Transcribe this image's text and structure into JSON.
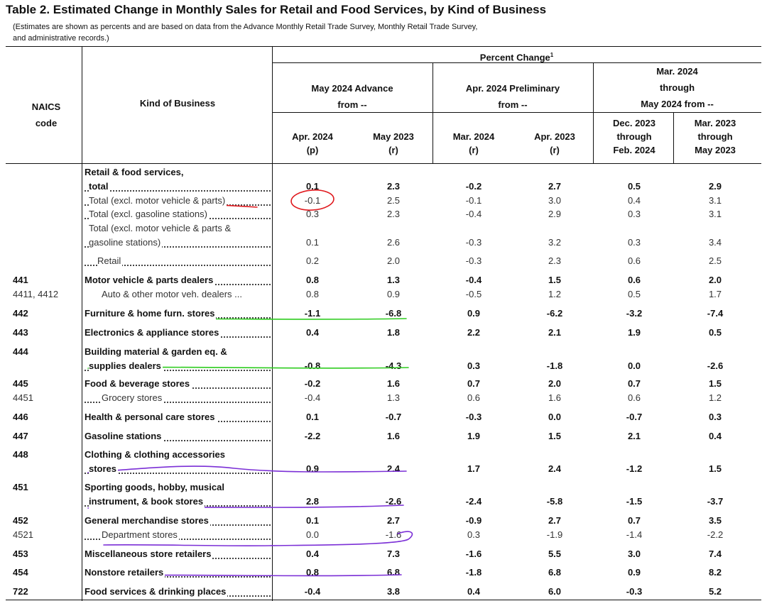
{
  "title": "Table 2.  Estimated Change in Monthly Sales for Retail and Food Services, by Kind of Business",
  "subtitle": [
    "(Estimates are shown as percents and are based on data from the Advance Monthly Retail Trade Survey,  Monthly Retail Trade Survey,",
    "and administrative records.)"
  ],
  "header": {
    "naics": [
      "NAICS",
      "code"
    ],
    "kind": "Kind of Business",
    "percent_change": "Percent Change",
    "footnote": "1",
    "groups": [
      {
        "lines": [
          "May 2024 Advance",
          "from --"
        ]
      },
      {
        "lines": [
          "Apr. 2024 Preliminary",
          "from --"
        ]
      },
      {
        "lines": [
          "Mar. 2024",
          "through",
          "May 2024 from --"
        ]
      }
    ],
    "cols": [
      {
        "lines": [
          "Apr. 2024",
          "(p)"
        ]
      },
      {
        "lines": [
          "May 2023",
          "(r)"
        ]
      },
      {
        "lines": [
          "Mar. 2024",
          "(r)"
        ]
      },
      {
        "lines": [
          "Apr. 2023",
          "(r)"
        ]
      },
      {
        "lines": [
          "Dec. 2023",
          "through",
          "Feb. 2024"
        ]
      },
      {
        "lines": [
          "Mar. 2023",
          "through",
          "May 2023"
        ]
      }
    ]
  },
  "rows": [
    {
      "code": "",
      "bold": true,
      "indent": 0,
      "label_lines": [
        "Retail & food services,",
        "total"
      ],
      "values": [
        "0.1",
        "2.3",
        "-0.2",
        "2.7",
        "0.5",
        "2.9"
      ]
    },
    {
      "code": "",
      "bold": false,
      "indent": 1,
      "label_lines": [
        "Total (excl. motor vehicle & parts)"
      ],
      "values": [
        "-0.1",
        "2.5",
        "-0.1",
        "3.0",
        "0.4",
        "3.1"
      ]
    },
    {
      "code": "",
      "bold": false,
      "indent": 1,
      "label_lines": [
        "Total (excl. gasoline stations)"
      ],
      "values": [
        "0.3",
        "2.3",
        "-0.4",
        "2.9",
        "0.3",
        "3.1"
      ]
    },
    {
      "code": "",
      "bold": false,
      "indent": 1,
      "label_lines": [
        "Total (excl. motor vehicle & parts &",
        "gasoline stations)"
      ],
      "values": [
        "0.1",
        "2.6",
        "-0.3",
        "3.2",
        "0.3",
        "3.4"
      ]
    },
    {
      "code": "",
      "bold": false,
      "indent": 2,
      "label_lines": [
        "Retail"
      ],
      "values": [
        "0.2",
        "2.0",
        "-0.3",
        "2.3",
        "0.6",
        "2.5"
      ]
    },
    {
      "code": "441",
      "bold": true,
      "indent": 0,
      "label_lines": [
        "Motor vehicle & parts dealers"
      ],
      "values": [
        "0.8",
        "1.3",
        "-0.4",
        "1.5",
        "0.6",
        "2.0"
      ]
    },
    {
      "code": "4411, 4412",
      "bold": false,
      "indent": 3,
      "label_lines": [
        "Auto & other motor veh. dealers ..."
      ],
      "values": [
        "0.8",
        "0.9",
        "-0.5",
        "1.2",
        "0.5",
        "1.7"
      ]
    },
    {
      "code": "442",
      "bold": true,
      "indent": 0,
      "label_lines": [
        "Furniture & home furn. stores"
      ],
      "values": [
        "-1.1",
        "-6.8",
        "0.9",
        "-6.2",
        "-3.2",
        "-7.4"
      ]
    },
    {
      "code": "443",
      "bold": true,
      "indent": 0,
      "label_lines": [
        "Electronics & appliance stores"
      ],
      "values": [
        "0.4",
        "1.8",
        "2.2",
        "2.1",
        "1.9",
        "0.5"
      ]
    },
    {
      "code": "444",
      "bold": true,
      "indent": 0,
      "label_lines": [
        "Building material & garden eq. &",
        "supplies dealers"
      ],
      "values": [
        "-0.8",
        "-4.3",
        "0.3",
        "-1.8",
        "0.0",
        "-2.6"
      ]
    },
    {
      "code": "445",
      "bold": true,
      "indent": 0,
      "label_lines": [
        "Food & beverage stores"
      ],
      "values": [
        "-0.2",
        "1.6",
        "0.7",
        "2.0",
        "0.7",
        "1.5"
      ]
    },
    {
      "code": "4451",
      "bold": false,
      "indent": 3,
      "label_lines": [
        "Grocery stores"
      ],
      "values": [
        "-0.4",
        "1.3",
        "0.6",
        "1.6",
        "0.6",
        "1.2"
      ]
    },
    {
      "code": "446",
      "bold": true,
      "indent": 0,
      "label_lines": [
        "Health & personal care stores"
      ],
      "values": [
        "0.1",
        "-0.7",
        "-0.3",
        "0.0",
        "-0.7",
        "0.3"
      ]
    },
    {
      "code": "447",
      "bold": true,
      "indent": 0,
      "label_lines": [
        "Gasoline stations"
      ],
      "values": [
        "-2.2",
        "1.6",
        "1.9",
        "1.5",
        "2.1",
        "0.4"
      ]
    },
    {
      "code": "448",
      "bold": true,
      "indent": 0,
      "label_lines": [
        "Clothing & clothing accessories",
        "stores"
      ],
      "values": [
        "0.9",
        "2.4",
        "1.7",
        "2.4",
        "-1.2",
        "1.5"
      ]
    },
    {
      "code": "451",
      "bold": true,
      "indent": 0,
      "label_lines": [
        "Sporting goods, hobby, musical",
        "instrument, & book stores"
      ],
      "values": [
        "2.8",
        "-2.6",
        "-2.4",
        "-5.8",
        "-1.5",
        "-3.7"
      ]
    },
    {
      "code": "452",
      "bold": true,
      "indent": 0,
      "label_lines": [
        "General merchandise stores"
      ],
      "values": [
        "0.1",
        "2.7",
        "-0.9",
        "2.7",
        "0.7",
        "3.5"
      ]
    },
    {
      "code": "4521",
      "bold": false,
      "indent": 3,
      "label_lines": [
        "Department stores"
      ],
      "values": [
        "0.0",
        "-1.6",
        "0.3",
        "-1.9",
        "-1.4",
        "-2.2"
      ]
    },
    {
      "code": "453",
      "bold": true,
      "indent": 0,
      "label_lines": [
        "Miscellaneous store retailers"
      ],
      "values": [
        "0.4",
        "7.3",
        "-1.6",
        "5.5",
        "3.0",
        "7.4"
      ]
    },
    {
      "code": "454",
      "bold": true,
      "indent": 0,
      "label_lines": [
        "Nonstore retailers"
      ],
      "values": [
        "0.8",
        "6.8",
        "-1.8",
        "6.8",
        "0.9",
        "8.2"
      ]
    },
    {
      "code": "722",
      "bold": true,
      "indent": 0,
      "label_lines": [
        "Food services & drinking places"
      ],
      "values": [
        "-0.4",
        "3.8",
        "0.4",
        "6.0",
        "-0.3",
        "5.2"
      ]
    }
  ],
  "annotations": {
    "red": "#e0191e",
    "green": "#2ecc1f",
    "purple": "#7b2fd6"
  }
}
